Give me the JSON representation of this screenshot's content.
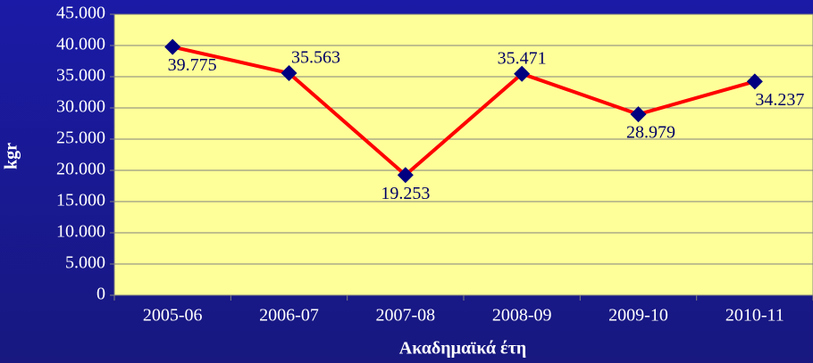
{
  "chart_data": {
    "type": "line",
    "categories": [
      "2005-06",
      "2006-07",
      "2007-08",
      "2008-09",
      "2009-10",
      "2010-11"
    ],
    "series": [
      {
        "values": [
          39775,
          35563,
          19253,
          35471,
          28979,
          34237
        ],
        "value_labels": [
          "39.775",
          "35.563",
          "19.253",
          "35.471",
          "28.979",
          "34.237"
        ],
        "color": "#ff0000",
        "marker_color": "#000080"
      }
    ],
    "ylim": [
      0,
      45000
    ],
    "yticks": [
      0,
      {
        "value": 5000,
        "label": "5.000"
      },
      {
        "value": 10000,
        "label": "10.000"
      },
      {
        "value": 15000,
        "label": "15.000"
      },
      {
        "value": 20000,
        "label": "20.000"
      },
      {
        "value": 25000,
        "label": "25.000"
      },
      {
        "value": 30000,
        "label": "30.000"
      },
      {
        "value": 35000,
        "label": "35.000"
      },
      {
        "value": 40000,
        "label": "40.000"
      },
      {
        "value": 45000,
        "label": "45.000"
      }
    ],
    "xlabel": "Ακαδημαϊκά έτη",
    "ylabel": "kgr",
    "grid": true
  }
}
